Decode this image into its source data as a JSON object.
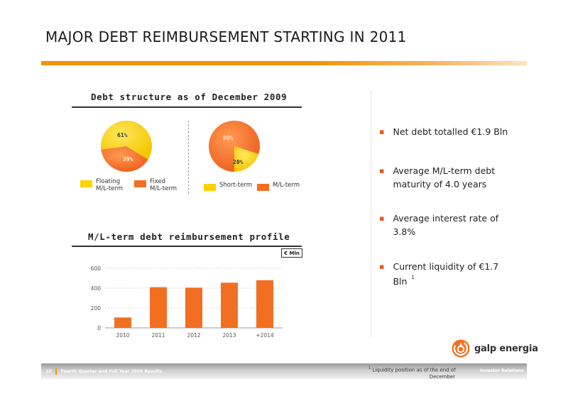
{
  "title": "MAJOR DEBT REIMBURSEMENT STARTING IN 2011",
  "debt_structure": {
    "title": "Debt structure as of December 2009",
    "pie1_legend": [
      "Floating\nM/L-term",
      "Fixed\nM/L-term"
    ],
    "pie2_legend": [
      "Short-term",
      "M/L-term"
    ]
  },
  "reimbursement": {
    "title": "M/L-term debt reimbursement profile",
    "unit": "€ Mln"
  },
  "colors": {
    "accent": "#f39200",
    "orange": "#f26f21",
    "yellow": "#ffd200"
  },
  "chart_data": [
    {
      "type": "pie",
      "labels": [
        "Floating M/L-term",
        "Fixed M/L-term"
      ],
      "values": [
        61,
        39
      ],
      "value_labels": [
        "61%",
        "39%"
      ],
      "colors": [
        "#ffd200",
        "#f26f21"
      ]
    },
    {
      "type": "pie",
      "labels": [
        "Short-term",
        "M/L-term"
      ],
      "values": [
        20,
        80
      ],
      "value_labels": [
        "20%",
        "80%"
      ],
      "colors": [
        "#ffd200",
        "#f26f21"
      ]
    },
    {
      "type": "bar",
      "categories": [
        "2010",
        "2011",
        "2012",
        "2013",
        "+2014"
      ],
      "values": [
        105,
        410,
        405,
        455,
        480
      ],
      "ylim": [
        0,
        600
      ],
      "yticks": [
        "0",
        "200",
        "400",
        "600"
      ],
      "grid": true,
      "color": "#f26f21"
    }
  ],
  "bullets": [
    {
      "text": "Net debt totalled €1.9 Bln",
      "sup": ""
    },
    {
      "text": "Average M/L-term debt maturity of 4.0 years",
      "sup": ""
    },
    {
      "text": "Average interest rate of 3.8%",
      "sup": ""
    },
    {
      "text": "Current liquidity of €1.7 Bln",
      "sup": "1"
    }
  ],
  "logo": {
    "text": "galp energia",
    "icon": "galp-flame-icon"
  },
  "footer": {
    "page": "12",
    "left_text": "Fourth Quarter and Full Year 2009 Results",
    "footnote_sup": "1",
    "footnote_line1": "Liquidity position as of  the end of",
    "footnote_line2": "December",
    "right_text": "Investor Relations"
  }
}
